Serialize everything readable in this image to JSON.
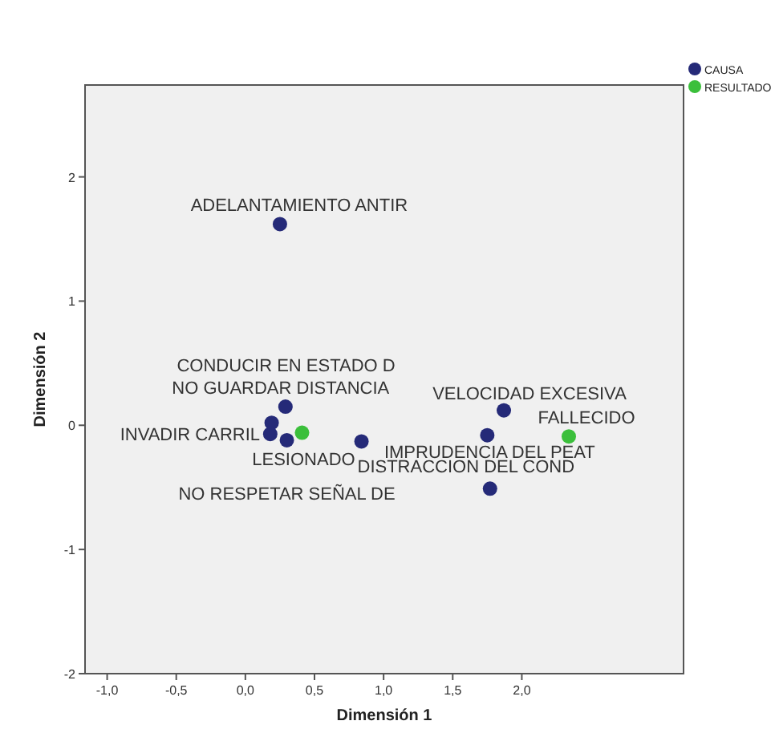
{
  "chart_data": {
    "type": "scatter",
    "xlabel": "Dimensión 1",
    "ylabel": "Dimensión 2",
    "xlim": [
      -1.16,
      3.17
    ],
    "ylim": [
      -2,
      2.74
    ],
    "xticks": [
      {
        "value": -1,
        "label": "-1,0"
      },
      {
        "value": -0.5,
        "label": "-0,5"
      },
      {
        "value": 0,
        "label": "0,0"
      },
      {
        "value": 0.5,
        "label": "0,5"
      },
      {
        "value": 1,
        "label": "1,0"
      },
      {
        "value": 1.5,
        "label": "1,5"
      },
      {
        "value": 2,
        "label": "2,0"
      }
    ],
    "yticks": [
      -2,
      -1,
      0,
      1,
      2
    ],
    "series": [
      {
        "name": "CAUSA",
        "color": "#252a78",
        "x": [
          0.25,
          0.29,
          0.19,
          0.18,
          0.3,
          0.84,
          1.75,
          1.87,
          1.77
        ],
        "values": [
          1.62,
          0.15,
          0.02,
          -0.07,
          -0.12,
          -0.13,
          -0.08,
          0.12,
          -0.51
        ]
      },
      {
        "name": "RESULTADO",
        "color": "#3bbf3b",
        "x": [
          0.41,
          2.34
        ],
        "values": [
          -0.06,
          -0.09
        ]
      }
    ],
    "annotations": [
      {
        "text": "ADELANTAMIENTO ANTIR",
        "x": 0.25,
        "y": 1.62
      },
      {
        "text": "CONDUCIR EN ESTADO D",
        "x": 0.19,
        "y": 0.02
      },
      {
        "text": "NO GUARDAR DISTANCIA",
        "x": 0.29,
        "y": 0.15
      },
      {
        "text": "VELOCIDAD EXCESIVA",
        "x": 1.87,
        "y": 0.12
      },
      {
        "text": "FALLECIDO",
        "x": 2.34,
        "y": -0.09
      },
      {
        "text": "INVADIR CARRIL",
        "x": 0.18,
        "y": -0.07
      },
      {
        "text": "LESIONADO",
        "x": 0.41,
        "y": -0.06
      },
      {
        "text": "IMPRUDENCIA DEL PEAT",
        "x": 1.75,
        "y": -0.08
      },
      {
        "text": "DISTRACCION DEL COND",
        "x": 1.77,
        "y": -0.51
      },
      {
        "text": "NO RESPETAR SEÑAL DE",
        "x": 0.3,
        "y": -0.12
      }
    ],
    "legend": "right",
    "marker": "circle",
    "grid": false
  }
}
